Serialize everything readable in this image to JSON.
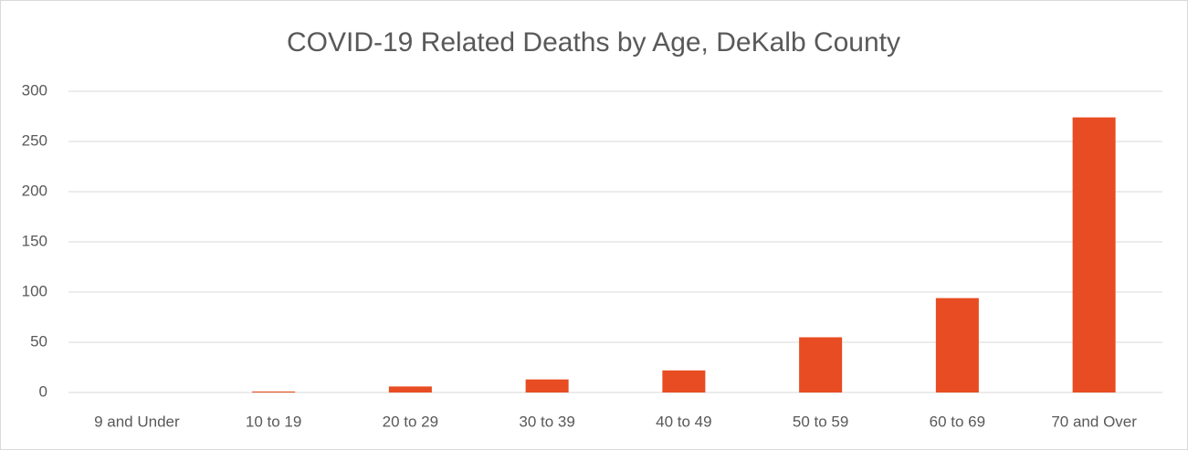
{
  "chart_data": {
    "type": "bar",
    "title": "COVID-19 Related Deaths by Age, DeKalb County",
    "categories": [
      "9 and Under",
      "10 to 19",
      "20 to 29",
      "30 to 39",
      "40 to 49",
      "50 to 59",
      "60 to 69",
      "70 and Over"
    ],
    "values": [
      0,
      1,
      6,
      13,
      22,
      55,
      94,
      274
    ],
    "color": "#e84c22",
    "ylim": [
      0,
      300
    ],
    "yticks": [
      0,
      50,
      100,
      150,
      200,
      250,
      300
    ],
    "grid": true
  }
}
